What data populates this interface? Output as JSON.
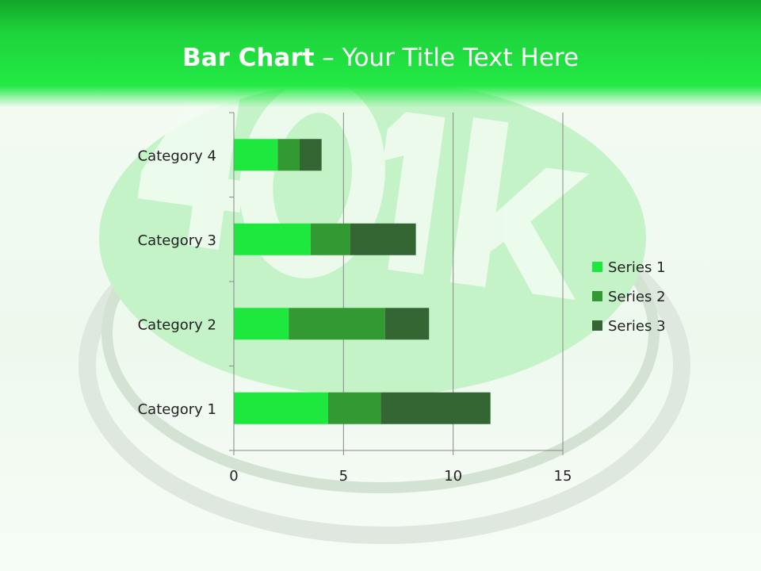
{
  "slide": {
    "title_bold": "Bar Chart",
    "title_rest": " – Your Title Text Here",
    "watermark": "401k"
  },
  "chart_data": {
    "type": "bar",
    "orientation": "horizontal",
    "stacked": true,
    "categories": [
      "Category 1",
      "Category 2",
      "Category 3",
      "Category 4"
    ],
    "series": [
      {
        "name": "Series 1",
        "values": [
          4.3,
          2.5,
          3.5,
          2.0
        ],
        "color": "#1ee83e"
      },
      {
        "name": "Series 2",
        "values": [
          2.4,
          4.4,
          1.8,
          1.0
        ],
        "color": "#339933"
      },
      {
        "name": "Series 3",
        "values": [
          5.0,
          2.0,
          3.0,
          1.0
        ],
        "color": "#336633"
      }
    ],
    "xlim": [
      0,
      15
    ],
    "xticks": [
      0,
      5,
      10,
      15
    ],
    "grid": "vertical",
    "legend": "right"
  }
}
